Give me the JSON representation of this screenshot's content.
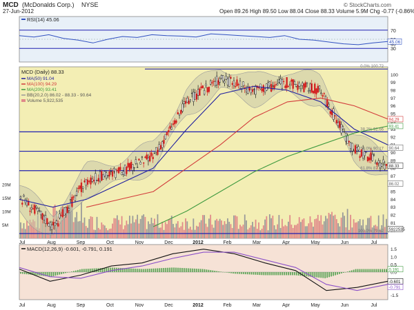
{
  "header": {
    "symbol": "MCD",
    "company": "(McDonalds Corp.)",
    "exchange": "NYSE",
    "date": "27-Jun-2012",
    "quote": "Open 89.26  High 89.50  Low 88.04  Close 88.33  Volume 5.9M  Chg -0.77 (-0.86%)",
    "watermark": "© StockCharts.com"
  },
  "colors": {
    "price_bg": "#f3eeb4",
    "panel_bg": "#e8f0f8",
    "macd_bg": "#f6e2d6",
    "ma50": "#1f1f9f",
    "ma100": "#d23a3a",
    "ma200": "#3f9a3f",
    "bband": "#999999",
    "rsi": "#3050c0",
    "hline": "#1f1fb0",
    "up": "#1f1f1f",
    "down": "#d42020"
  },
  "rsi_panel": {
    "legend": "RSI(14) 45.06",
    "ticks": [
      "70",
      "50",
      "40",
      "30"
    ],
    "value_label": "45.06"
  },
  "price_panel": {
    "legend": {
      "main": "MCD (Daily) 88.33",
      "ma50": "MA(50) 91.04",
      "ma100": "MA(100) 94.29",
      "ma200": "MA(200) 93.41",
      "bb": "BB(20,2.0) 86.02 - 88.33 - 90.64",
      "volume": "Volume 5,922,535"
    },
    "right_ticks": [
      "100",
      "99",
      "98",
      "97",
      "96",
      "95",
      "94",
      "93",
      "92",
      "91",
      "90",
      "89",
      "88",
      "87",
      "86",
      "85",
      "84",
      "83",
      "82",
      "81",
      "80"
    ],
    "volume_ticks": [
      "20M",
      "15M",
      "10M",
      "5M"
    ],
    "badges": [
      {
        "text": "94.29",
        "color": "#d23a3a"
      },
      {
        "text": "93.41",
        "color": "#3f9a3f"
      },
      {
        "text": "90.64",
        "color": "#666666"
      },
      {
        "text": "88.33",
        "color": "#333333"
      },
      {
        "text": "86.02",
        "color": "#666666"
      },
      {
        "text": "5922535",
        "color": "#333333"
      }
    ],
    "fib_labels": [
      "0.0% 100.72",
      "38.2% 92.66",
      "50.0% 90.17",
      "61.8% 87.68",
      "100.0% 79.62"
    ]
  },
  "macd_panel": {
    "legend": "MACD(12,26,9) -0.601, -0.791, 0.191",
    "ticks": [
      "1.5",
      "1.0",
      "0.5",
      "0.0",
      "-0.5",
      "-1.0",
      "-1.5"
    ],
    "badges": [
      "0.191",
      "-0.601",
      "-0.791"
    ]
  },
  "x_axis": {
    "labels": [
      "Jul",
      "Aug",
      "Sep",
      "Oct",
      "Nov",
      "Dec",
      "2012",
      "Feb",
      "Mar",
      "Apr",
      "May",
      "Jun",
      "Jul"
    ]
  },
  "chart_data": [
    {
      "type": "line",
      "title": "RSI(14)",
      "ylim": [
        0,
        100
      ],
      "series": [
        {
          "name": "RSI(14)",
          "values": [
            58,
            55,
            60,
            52,
            48,
            42,
            50,
            56,
            54,
            60,
            58,
            57,
            55,
            62,
            60,
            58,
            56,
            54,
            58,
            50,
            48,
            44,
            40,
            38,
            42,
            45
          ]
        }
      ]
    },
    {
      "type": "line",
      "title": "MCD (Daily)",
      "x": [
        "Jul",
        "Aug",
        "Sep",
        "Oct",
        "Nov",
        "Dec",
        "2012",
        "Feb",
        "Mar",
        "Apr",
        "May",
        "Jun"
      ],
      "ylim": [
        79,
        101
      ],
      "series": [
        {
          "name": "MCD (Daily)",
          "values": [
            84.2,
            80.5,
            86.5,
            87.5,
            89.5,
            96.5,
            99.5,
            98.0,
            99.0,
            98.0,
            90.5,
            88.3
          ]
        },
        {
          "name": "MA(50)",
          "values": [
            84.0,
            83.0,
            84.0,
            86.0,
            88.0,
            93.0,
            97.5,
            98.5,
            98.0,
            96.5,
            93.0,
            91.0
          ]
        },
        {
          "name": "MA(100)",
          "values": [
            null,
            null,
            83.0,
            84.0,
            85.0,
            88.0,
            91.0,
            94.5,
            96.5,
            97.0,
            96.0,
            94.3
          ]
        },
        {
          "name": "MA(200)",
          "values": [
            null,
            null,
            null,
            null,
            80.5,
            82.5,
            85.0,
            87.5,
            89.5,
            91.0,
            92.5,
            93.4
          ]
        }
      ],
      "horizontal_lines": [
        100.72,
        92.66,
        90.17,
        87.68,
        79.62
      ],
      "volume_ylim": [
        0,
        20
      ]
    },
    {
      "type": "line",
      "title": "MACD(12,26,9)",
      "ylim": [
        -1.8,
        1.8
      ],
      "series": [
        {
          "name": "MACD",
          "values": [
            0.2,
            -0.6,
            -0.2,
            0.4,
            0.6,
            1.2,
            1.5,
            1.2,
            0.6,
            0.1,
            -1.2,
            -1.0,
            -0.6
          ]
        },
        {
          "name": "Signal",
          "values": [
            0.3,
            -0.3,
            -0.4,
            0.1,
            0.4,
            0.9,
            1.3,
            1.3,
            0.8,
            0.3,
            -0.8,
            -1.2,
            -0.8
          ]
        }
      ]
    }
  ]
}
